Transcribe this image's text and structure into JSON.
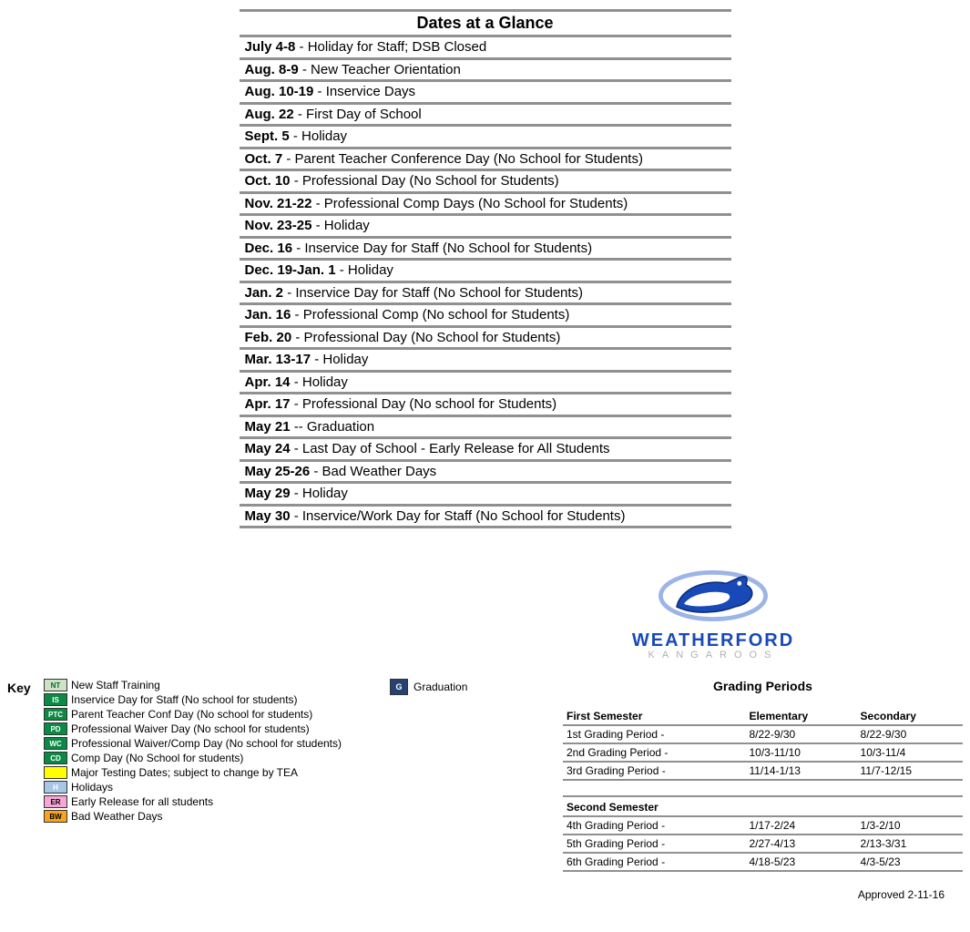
{
  "dates_at_glance": {
    "title": "Dates at a Glance",
    "rows": [
      {
        "date": "July 4-8",
        "desc": " - Holiday for Staff; DSB Closed"
      },
      {
        "date": "Aug. 8-9",
        "desc": " - New Teacher Orientation"
      },
      {
        "date": "Aug. 10-19",
        "desc": " - Inservice Days"
      },
      {
        "date": "Aug. 22",
        "desc": " - First Day of School"
      },
      {
        "date": "Sept. 5",
        "desc": " - Holiday"
      },
      {
        "date": "Oct. 7",
        "desc": " - Parent Teacher Conference Day (No School for Students)"
      },
      {
        "date": "Oct. 10",
        "desc": " - Professional Day (No School for Students)"
      },
      {
        "date": "Nov. 21-22",
        "desc": " - Professional Comp Days (No School for Students)"
      },
      {
        "date": "Nov. 23-25",
        "desc": " - Holiday"
      },
      {
        "date": "Dec. 16",
        "desc": " - Inservice Day for Staff (No School for Students)"
      },
      {
        "date": "Dec. 19-Jan. 1",
        "desc": " - Holiday"
      },
      {
        "date": "Jan. 2",
        "desc": " - Inservice Day for Staff (No School for Students)"
      },
      {
        "date": "Jan. 16",
        "desc": " - Professional Comp (No school for Students)"
      },
      {
        "date": "Feb. 20",
        "desc": " - Professional Day (No School for Students)"
      },
      {
        "date": "Mar. 13-17",
        "desc": " - Holiday"
      },
      {
        "date": "Apr. 14",
        "desc": " - Holiday"
      },
      {
        "date": "Apr. 17",
        "desc": " - Professional Day (No school for Students)"
      },
      {
        "date": "May 21",
        "desc": " -- Graduation"
      },
      {
        "date": "May 24",
        "desc": " - Last Day of School - Early Release for All Students"
      },
      {
        "date": "May 25-26",
        "desc": " - Bad Weather Days"
      },
      {
        "date": "May 29",
        "desc": " - Holiday"
      },
      {
        "date": "May 30",
        "desc": " - Inservice/Work Day for Staff (No School for Students)"
      }
    ]
  },
  "logo": {
    "name": "WEATHERFORD",
    "sub": "KANGAROOS",
    "colors": {
      "main": "#1849b9",
      "outline": "#9cb4e6",
      "sub": "#aeb1b3"
    }
  },
  "key": {
    "label": "Key",
    "items": [
      {
        "code": "NT",
        "bg": "#cfe2c4",
        "fg": "#00693e",
        "text": "New Staff Training"
      },
      {
        "code": "IS",
        "bg": "#0a8a44",
        "fg": "#ffffff",
        "text": "Inservice Day for Staff (No school for students)"
      },
      {
        "code": "PTC",
        "bg": "#0a8a44",
        "fg": "#ffffff",
        "text": "Parent Teacher Conf Day (No school for students)"
      },
      {
        "code": "PD",
        "bg": "#0a8a44",
        "fg": "#ffffff",
        "text": "Professional  Waiver Day (No school for students)"
      },
      {
        "code": "WC",
        "bg": "#0a8a44",
        "fg": "#ffffff",
        "text": "Professional Waiver/Comp Day (No school for students)"
      },
      {
        "code": "CD",
        "bg": "#0a8a44",
        "fg": "#ffffff",
        "text": "Comp Day (No School for students)"
      },
      {
        "code": "",
        "bg": "#ffff00",
        "fg": "#000000",
        "text": "Major Testing Dates; subject to change by TEA"
      },
      {
        "code": "H",
        "bg": "#a8c7e6",
        "fg": "#ffffff",
        "text": "Holidays"
      },
      {
        "code": "ER",
        "bg": "#f4a7d4",
        "fg": "#000000",
        "text": "Early Release for all students"
      },
      {
        "code": "BW",
        "bg": "#f9a21b",
        "fg": "#000000",
        "text": "Bad Weather Days"
      }
    ],
    "graduation": {
      "code": "G",
      "bg": "#274272",
      "fg": "#ffffff",
      "text": "Graduation"
    }
  },
  "grading": {
    "title": "Grading Periods",
    "headers": [
      "First Semester",
      "Elementary",
      "Secondary"
    ],
    "sem1": [
      {
        "label": "1st Grading Period -",
        "elem": "8/22-9/30",
        "sec": "8/22-9/30"
      },
      {
        "label": "2nd Grading Period -",
        "elem": "10/3-11/10",
        "sec": "10/3-11/4"
      },
      {
        "label": "3rd Grading Period -",
        "elem": "11/14-1/13",
        "sec": "11/7-12/15"
      }
    ],
    "sem2_header": "Second Semester",
    "sem2": [
      {
        "label": "4th Grading Period -",
        "elem": "1/17-2/24",
        "sec": "1/3-2/10"
      },
      {
        "label": "5th Grading Period -",
        "elem": "2/27-4/13",
        "sec": "2/13-3/31"
      },
      {
        "label": "6th Grading Period -",
        "elem": "4/18-5/23",
        "sec": "4/3-5/23"
      }
    ]
  },
  "approved": "Approved 2-11-16"
}
